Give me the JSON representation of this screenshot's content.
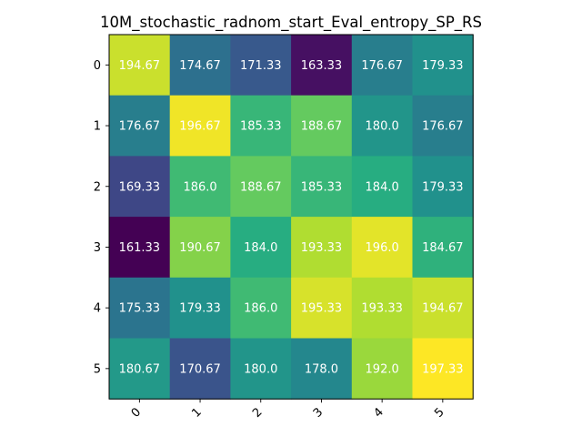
{
  "chart_data": {
    "type": "heatmap",
    "title": "10M_stochastic_radnom_start_Eval_entropy_SP_RS",
    "xlabel": "",
    "ylabel": "",
    "x_tick_labels": [
      "0",
      "1",
      "2",
      "3",
      "4",
      "5"
    ],
    "y_tick_labels": [
      "0",
      "1",
      "2",
      "3",
      "4",
      "5"
    ],
    "x_tick_rotation": "45 degrees",
    "colormap": "viridis",
    "grid": false,
    "values": [
      [
        194.67,
        174.67,
        171.33,
        163.33,
        176.67,
        179.33
      ],
      [
        176.67,
        196.67,
        185.33,
        188.67,
        180.0,
        176.67
      ],
      [
        169.33,
        186.0,
        188.67,
        185.33,
        184.0,
        179.33
      ],
      [
        161.33,
        190.67,
        184.0,
        193.33,
        196.0,
        184.67
      ],
      [
        175.33,
        179.33,
        186.0,
        195.33,
        193.33,
        194.67
      ],
      [
        180.67,
        170.67,
        180.0,
        178.0,
        192.0,
        197.33
      ]
    ],
    "value_labels": [
      [
        "194.67",
        "174.67",
        "171.33",
        "163.33",
        "176.67",
        "179.33"
      ],
      [
        "176.67",
        "196.67",
        "185.33",
        "188.67",
        "180.0",
        "176.67"
      ],
      [
        "169.33",
        "186.0",
        "188.67",
        "185.33",
        "184.0",
        "179.33"
      ],
      [
        "161.33",
        "190.67",
        "184.0",
        "193.33",
        "196.0",
        "184.67"
      ],
      [
        "175.33",
        "179.33",
        "186.0",
        "195.33",
        "193.33",
        "194.67"
      ],
      [
        "180.67",
        "170.67",
        "180.0",
        "178.0",
        "192.0",
        "197.33"
      ]
    ],
    "label_color": "#ffffff"
  }
}
